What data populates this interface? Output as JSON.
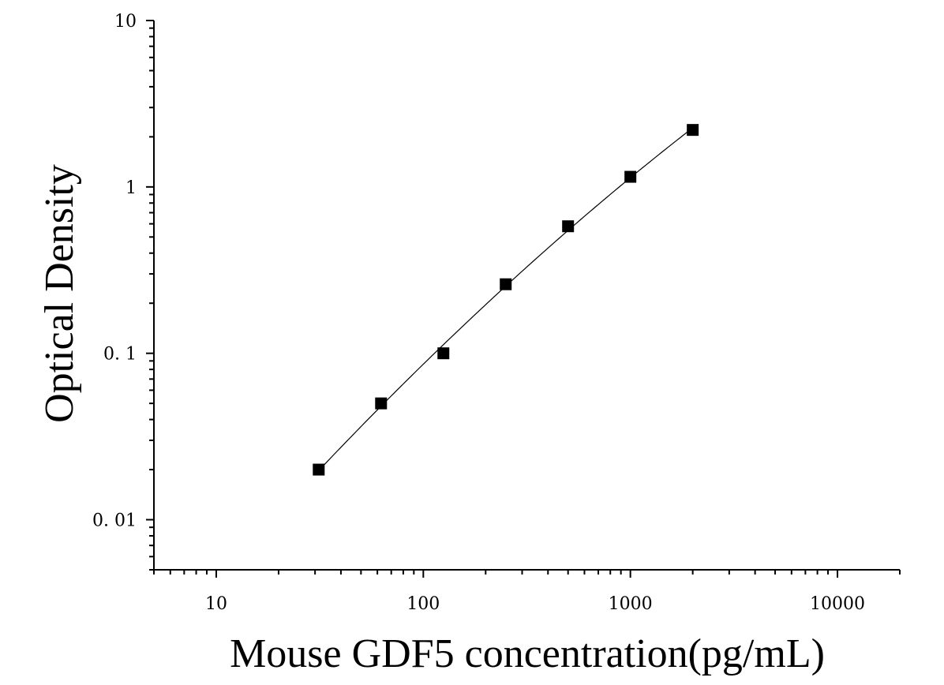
{
  "chart_data": {
    "type": "scatter",
    "title": "",
    "xlabel": "Mouse GDF5 concentration(pg/mL)",
    "ylabel": "Optical Density",
    "xscale": "log",
    "yscale": "log",
    "xlim": [
      5,
      20000
    ],
    "ylim": [
      0.005,
      10
    ],
    "x_ticks": [
      10,
      100,
      1000,
      10000
    ],
    "x_tick_labels": [
      "10",
      "100",
      "1000",
      "10000"
    ],
    "y_ticks": [
      0.01,
      0.1,
      1,
      10
    ],
    "y_tick_labels": [
      "0. 01",
      "0. 1",
      "1",
      "10"
    ],
    "grid": false,
    "legend": "none",
    "series": [
      {
        "marker": "square",
        "color": "#000000",
        "x": [
          31.25,
          62.5,
          125,
          250,
          500,
          1000,
          2000
        ],
        "y": [
          0.02,
          0.05,
          0.1,
          0.26,
          0.58,
          1.15,
          2.2
        ]
      }
    ],
    "fit_curve": {
      "color": "#000000",
      "x_range": [
        31.25,
        2000
      ]
    }
  }
}
